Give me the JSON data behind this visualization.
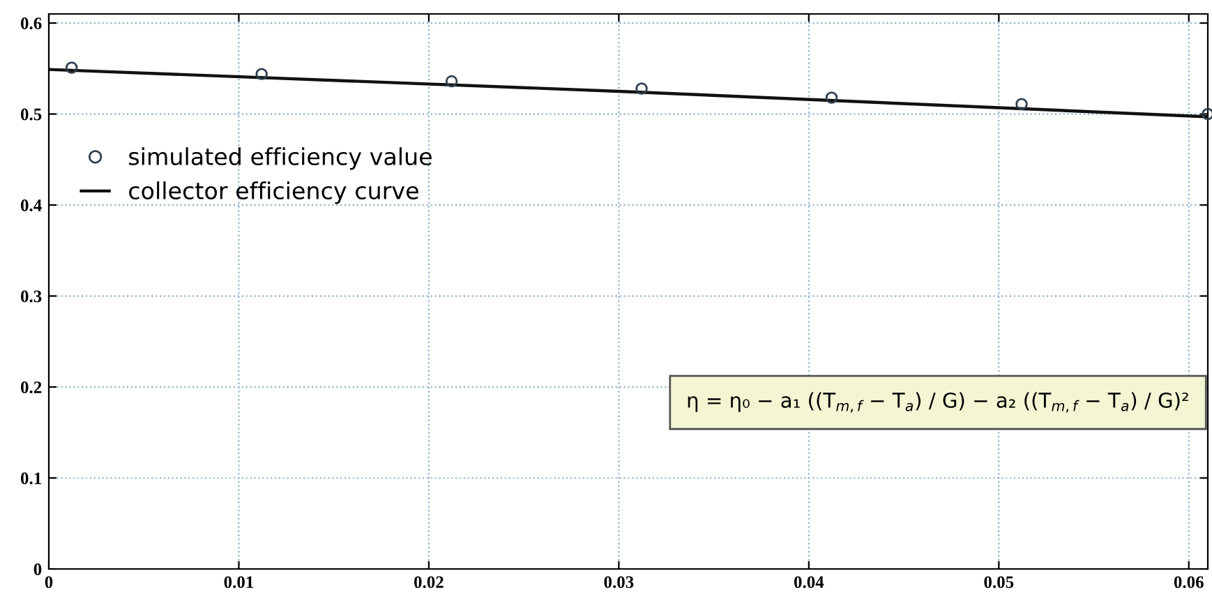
{
  "chart_data": {
    "type": "scatter",
    "series": [
      {
        "name": "simulated efficiency value",
        "color": "#2f3f4f",
        "marker": "circle",
        "x": [
          0.0012,
          0.0112,
          0.0212,
          0.0312,
          0.0412,
          0.0512,
          0.061
        ],
        "values": [
          0.551,
          0.544,
          0.536,
          0.528,
          0.518,
          0.511,
          0.5
        ]
      },
      {
        "name": "collector efficiency curve",
        "type": "line",
        "color": "#111111",
        "marker": "none",
        "line_style": "solid",
        "x": [
          0,
          0.03,
          0.061
        ],
        "values": [
          0.549,
          0.525,
          0.497
        ]
      }
    ],
    "xlim": [
      0,
      0.061
    ],
    "ylim": [
      0,
      0.61
    ],
    "xticks": [
      0,
      0.01,
      0.02,
      0.03,
      0.04,
      0.05,
      0.06
    ],
    "yticks": [
      0,
      0.1,
      0.2,
      0.3,
      0.4,
      0.5,
      0.6
    ],
    "grid": true,
    "legend": "left",
    "annotations": [
      "η = η₀ − a₁ ((T$_{m,f}$ − T$_{a}$) / G) − a₂ ((T$_{m,f}$ − T$_{a}$) / G)²"
    ]
  }
}
